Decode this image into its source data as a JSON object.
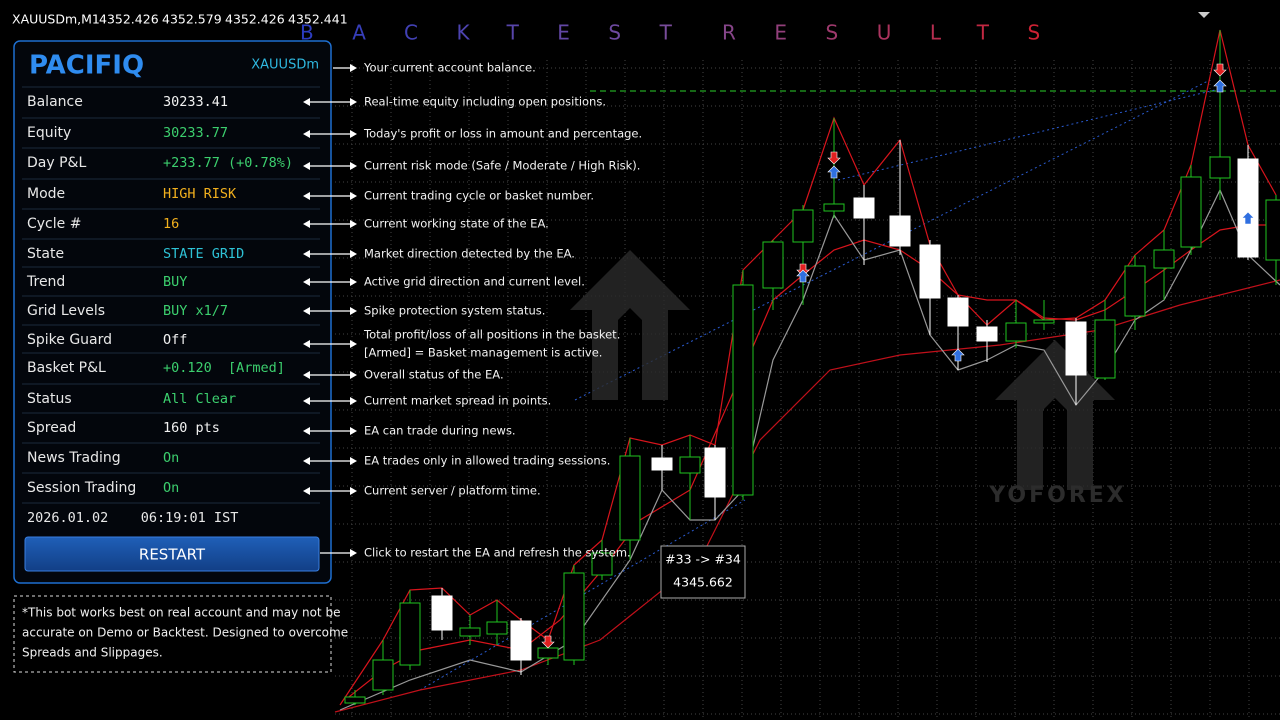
{
  "header": {
    "symbol": "XAUUSDm,M1",
    "prices": [
      "4352.426",
      "4352.579",
      "4352.426",
      "4352.441"
    ]
  },
  "banner": [
    "BACKTEST",
    "RESULTS"
  ],
  "panel": {
    "brand": "PACIFIQ",
    "symbol": "XAUUSDm",
    "rows": [
      {
        "label": "Balance",
        "value": "30233.41",
        "color": "#f2f2f2"
      },
      {
        "label": "Equity",
        "value": "30233.77",
        "color": "#3ccf6e"
      },
      {
        "label": "Day P&L",
        "value": "+233.77 (+0.78%)",
        "color": "#3ccf6e"
      },
      {
        "label": "Mode",
        "value": "HIGH RISK",
        "color": "#f2b01e"
      },
      {
        "label": "Cycle #",
        "value": "16",
        "color": "#f2b01e"
      },
      {
        "label": "State",
        "value": "STATE GRID",
        "color": "#2ec2d6"
      },
      {
        "label": "Trend",
        "value": "BUY",
        "color": "#3ccf6e"
      },
      {
        "label": "Grid Levels",
        "value": "BUY x1/7",
        "color": "#3ccf6e"
      },
      {
        "label": "Spike Guard",
        "value": "Off",
        "color": "#f2f2f2"
      },
      {
        "label": "Basket P&L",
        "value": "+0.120  [Armed]",
        "color": "#3ccf6e"
      },
      {
        "label": "Status",
        "value": "All Clear",
        "color": "#3ccf6e"
      },
      {
        "label": "Spread",
        "value": "160 pts",
        "color": "#f2f2f2"
      },
      {
        "label": "News Trading",
        "value": "On",
        "color": "#3ccf6e"
      },
      {
        "label": "Session Trading",
        "value": "On",
        "color": "#3ccf6e"
      }
    ],
    "datetime": "2026.01.02    06:19:01 IST",
    "button": "RESTART"
  },
  "annotations": [
    "Your current account balance.",
    "Real-time equity including open positions.",
    "Today's profit or loss in amount and percentage.",
    "Current risk mode (Safe / Moderate / High Risk).",
    "Current trading cycle or basket number.",
    "Current working state of the EA.",
    "Market direction detected by the EA.",
    "Active grid direction and current level.",
    "Spike protection system status.",
    "Total profit/loss of all positions in the basket.",
    "[Armed] = Basket management is active.",
    "Overall status of the EA.",
    "Current market spread in points.",
    "EA can trade during news.",
    "EA trades only in allowed trading sessions.",
    "Current server / platform time.",
    "Click to restart the EA and refresh the system."
  ],
  "disclaimer": [
    "*This bot works best on real account and may not be",
    "accurate on Demo or Backtest. Designed to overcome",
    "Spreads and Slippages."
  ],
  "tooltip": [
    "#33 -> #34",
    "4345.662"
  ],
  "watermark": "YOFOREX"
}
